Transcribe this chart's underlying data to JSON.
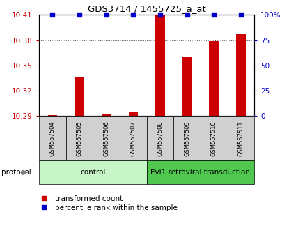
{
  "title": "GDS3714 / 1455725_a_at",
  "samples": [
    "GSM557504",
    "GSM557505",
    "GSM557506",
    "GSM557507",
    "GSM557508",
    "GSM557509",
    "GSM557510",
    "GSM557511"
  ],
  "red_values": [
    10.291,
    10.337,
    10.292,
    10.295,
    10.41,
    10.361,
    10.379,
    10.387
  ],
  "blue_values": [
    100,
    100,
    100,
    100,
    100,
    100,
    100,
    100
  ],
  "ylim_left": [
    10.29,
    10.41
  ],
  "ylim_right": [
    0,
    100
  ],
  "yticks_left": [
    10.29,
    10.32,
    10.35,
    10.38,
    10.41
  ],
  "yticks_right": [
    0,
    25,
    50,
    75,
    100
  ],
  "groups": [
    {
      "label": "control",
      "start": 0,
      "end": 4,
      "color": "#c8f5c8"
    },
    {
      "label": "Evi1 retroviral transduction",
      "start": 4,
      "end": 8,
      "color": "#50c850"
    }
  ],
  "protocol_label": "protocol",
  "bar_color": "#cc0000",
  "dot_color": "#0000cc",
  "bar_width": 0.35,
  "dot_size": 25,
  "background_color": "#ffffff",
  "grid_color": "#555555",
  "left_label_color": "#cc0000",
  "right_label_color": "#0000cc",
  "sample_bg_color": "#d0d0d0",
  "legend_red_label": "transformed count",
  "legend_blue_label": "percentile rank within the sample"
}
